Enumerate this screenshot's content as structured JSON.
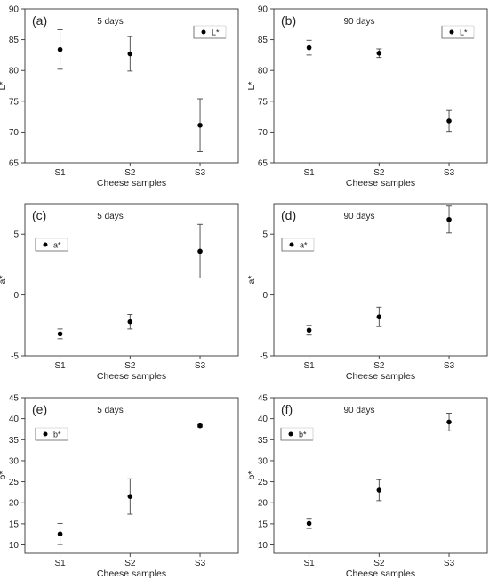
{
  "chart_data": [
    {
      "type": "scatter",
      "panel_label": "(a)",
      "title": "5 days",
      "xlabel": "Cheese samples",
      "ylabel": "L*",
      "categories": [
        "S1",
        "S2",
        "S3"
      ],
      "ylim": [
        65,
        90
      ],
      "yticks": [
        65,
        70,
        75,
        80,
        85,
        90
      ],
      "legend_position": "top-right",
      "series": [
        {
          "name": "L*",
          "values": [
            83.4,
            82.7,
            71.1
          ],
          "error": [
            3.2,
            2.8,
            4.3
          ]
        }
      ]
    },
    {
      "type": "scatter",
      "panel_label": "(b)",
      "title": "90 days",
      "xlabel": "Cheese samples",
      "ylabel": "L*",
      "categories": [
        "S1",
        "S2",
        "S3"
      ],
      "ylim": [
        65,
        90
      ],
      "yticks": [
        65,
        70,
        75,
        80,
        85,
        90
      ],
      "legend_position": "top-right",
      "series": [
        {
          "name": "L*",
          "values": [
            83.7,
            82.8,
            71.8
          ],
          "error": [
            1.2,
            0.7,
            1.7
          ]
        }
      ]
    },
    {
      "type": "scatter",
      "panel_label": "(c)",
      "title": "5 days",
      "xlabel": "Cheese samples",
      "ylabel": "a*",
      "categories": [
        "S1",
        "S2",
        "S3"
      ],
      "ylim": [
        -5,
        7.5
      ],
      "yticks": [
        -5,
        0,
        5
      ],
      "legend_position": "top-left",
      "series": [
        {
          "name": "a*",
          "values": [
            -3.2,
            -2.2,
            3.6
          ],
          "error": [
            0.4,
            0.6,
            2.2
          ]
        }
      ]
    },
    {
      "type": "scatter",
      "panel_label": "(d)",
      "title": "90 days",
      "xlabel": "Cheese samples",
      "ylabel": "a*",
      "categories": [
        "S1",
        "S2",
        "S3"
      ],
      "ylim": [
        -5,
        7.5
      ],
      "yticks": [
        -5,
        0,
        5
      ],
      "legend_position": "top-left",
      "series": [
        {
          "name": "a*",
          "values": [
            -2.9,
            -1.8,
            6.2
          ],
          "error": [
            0.4,
            0.8,
            1.1
          ]
        }
      ]
    },
    {
      "type": "scatter",
      "panel_label": "(e)",
      "title": "5 days",
      "xlabel": "Cheese samples",
      "ylabel": "b*",
      "categories": [
        "S1",
        "S2",
        "S3"
      ],
      "ylim": [
        8,
        45
      ],
      "yticks": [
        10,
        15,
        20,
        25,
        30,
        35,
        40,
        45
      ],
      "legend_position": "top-left",
      "series": [
        {
          "name": "b*",
          "values": [
            12.6,
            21.5,
            38.3
          ],
          "error": [
            2.5,
            4.2,
            0.3
          ]
        }
      ]
    },
    {
      "type": "scatter",
      "panel_label": "(f)",
      "title": "90 days",
      "xlabel": "Cheese samples",
      "ylabel": "b*",
      "categories": [
        "S1",
        "S2",
        "S3"
      ],
      "ylim": [
        8,
        45
      ],
      "yticks": [
        10,
        15,
        20,
        25,
        30,
        35,
        40,
        45
      ],
      "legend_position": "top-left",
      "series": [
        {
          "name": "b*",
          "values": [
            15.1,
            23.0,
            39.2
          ],
          "error": [
            1.2,
            2.5,
            2.1
          ]
        }
      ]
    }
  ]
}
